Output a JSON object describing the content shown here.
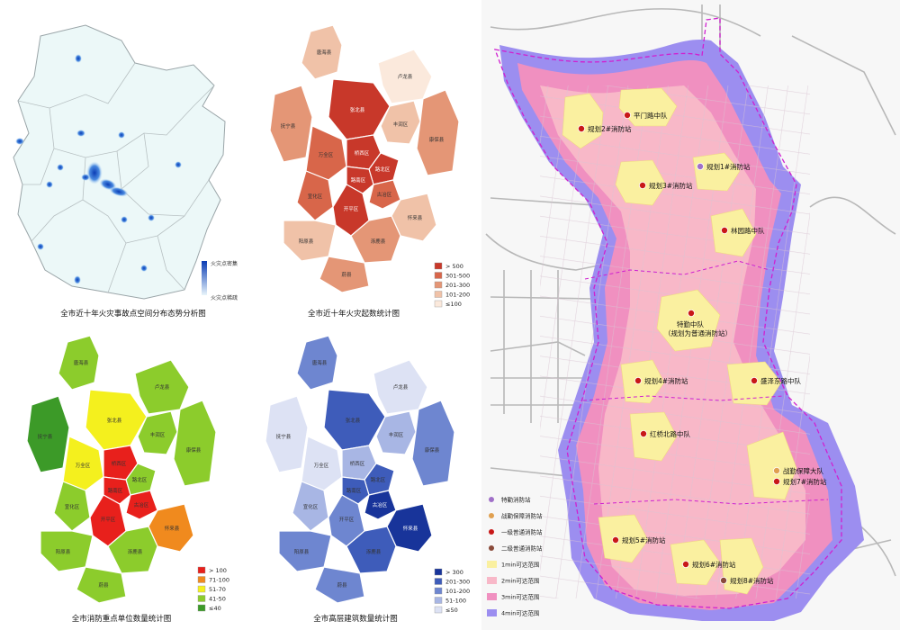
{
  "map1": {
    "title": "全市近十年火灾事故点空间分布态势分析图",
    "legend_high": "火灾点密集",
    "legend_low": "火灾点稀疏",
    "colors": {
      "bg": "#ecf8f8",
      "border": "#9aa5a8",
      "hot": "#1a64c8"
    }
  },
  "map2": {
    "title": "全市近十年火灾起数统计图",
    "legend": [
      {
        "label": "> 500",
        "color": "#c8382a"
      },
      {
        "label": "301-500",
        "color": "#d8664a"
      },
      {
        "label": "201-300",
        "color": "#e49676"
      },
      {
        "label": "101-200",
        "color": "#f0c2a8"
      },
      {
        "label": "≤100",
        "color": "#fbe9dc"
      }
    ],
    "districts": {
      "tanghai": "唐海县",
      "lulong": "卢龙县",
      "funing": "抚宁县",
      "zhangbei": "张北县",
      "fengrun": "丰润区",
      "guye": "古冶区",
      "kaiping": "开平区",
      "wanquan": "万全区",
      "qiaoxi": "桥西区",
      "lubei": "路北区",
      "lunan": "路南区",
      "xuanhua": "宣化区",
      "yuxian": "蔚县",
      "kangbao": "康保县",
      "yangyuan": "阳原县",
      "huailai": "怀来县",
      "zhuolu": "涿鹿县"
    }
  },
  "map3": {
    "title": "全市消防重点单位数量统计图",
    "legend": [
      {
        "label": "> 100",
        "color": "#e8201c"
      },
      {
        "label": "71-100",
        "color": "#f08a1e"
      },
      {
        "label": "51-70",
        "color": "#f4f01e"
      },
      {
        "label": "41-50",
        "color": "#8ccc2c"
      },
      {
        "label": "≤40",
        "color": "#3c9a28"
      }
    ]
  },
  "map4": {
    "title": "全市高层建筑数量统计图",
    "legend": [
      {
        "label": "> 300",
        "color": "#18349a"
      },
      {
        "label": "201-300",
        "color": "#3e5cba"
      },
      {
        "label": "101-200",
        "color": "#6e86d0"
      },
      {
        "label": "51-100",
        "color": "#a8b6e4"
      },
      {
        "label": "≤50",
        "color": "#dde2f4"
      }
    ]
  },
  "coverage": {
    "stations": {
      "pingmen": "平门路中队",
      "plan2": "规划2#消防站",
      "plan1": "规划1#消防站",
      "plan3": "规划3#消防站",
      "linyuan": "林园路中队",
      "tegin1": "特勤中队",
      "tegin2": "（规划为普通消防站）",
      "plan4": "规划4#消防站",
      "shengze": "盛泽东路中队",
      "hongqiao": "红桥北路中队",
      "zhanqin": "战勤保障大队",
      "plan7": "规划7#消防站",
      "plan5": "规划5#消防站",
      "plan6": "规划6#消防站",
      "plan8": "规划8#消防站"
    },
    "legend": [
      {
        "label": "特勤消防站",
        "color": "#a070c8",
        "kind": "dot"
      },
      {
        "label": "战勤保障消防站",
        "color": "#e0a050",
        "kind": "dot"
      },
      {
        "label": "一级普通消防站",
        "color": "#c81818",
        "kind": "dot"
      },
      {
        "label": "二级普通消防站",
        "color": "#8a4a3a",
        "kind": "dot"
      },
      {
        "label": "1min可达范围",
        "color": "#faf0a0",
        "kind": "box"
      },
      {
        "label": "2min可达范围",
        "color": "#f8b8c8",
        "kind": "box"
      },
      {
        "label": "3min可达范围",
        "color": "#f090c0",
        "kind": "box"
      },
      {
        "label": "4min可达范围",
        "color": "#9c8ef0",
        "kind": "box"
      }
    ]
  }
}
